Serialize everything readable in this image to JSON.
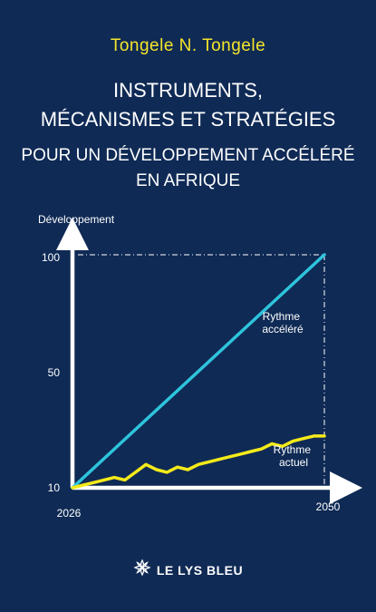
{
  "author": "Tongele N. Tongele",
  "title_lines": [
    "INSTRUMENTS,",
    "MÉCANISMES ET STRATÉGIES"
  ],
  "subtitle_lines": [
    "POUR UN DÉVELOPPEMENT ACCÉLÉRÉ",
    "EN AFRIQUE"
  ],
  "publisher": {
    "name": "LE LYS BLEU",
    "logo_icon": "lily-flower-icon"
  },
  "colors": {
    "background": "#0f2a55",
    "author": "#f4e52a",
    "accelerated_line": "#2ec4dc",
    "current_line": "#f4ea1a",
    "axes": "#ffffff"
  },
  "chart_data": {
    "type": "line",
    "ylabel": "Développement",
    "xlabel": "",
    "xlim": [
      2026,
      2050
    ],
    "x_ticks": [
      "2026",
      "2050"
    ],
    "y_ticks": [
      "10",
      "50",
      "100"
    ],
    "ylim": [
      10,
      100
    ],
    "series": [
      {
        "name_lines": [
          "Rythme",
          "accéléré"
        ],
        "color": "#2ec4dc",
        "x": [
          2026,
          2050
        ],
        "y": [
          10,
          100
        ]
      },
      {
        "name_lines": [
          "Rythme",
          "actuel"
        ],
        "color": "#f4ea1a",
        "x": [
          2026,
          2027,
          2028,
          2029,
          2030,
          2031,
          2032,
          2033,
          2034,
          2035,
          2036,
          2037,
          2038,
          2039,
          2040,
          2041,
          2042,
          2043,
          2044,
          2045,
          2046,
          2047,
          2048,
          2049,
          2050
        ],
        "y": [
          10,
          11,
          12,
          13,
          14,
          13,
          16,
          19,
          17,
          16,
          18,
          17,
          19,
          20,
          21,
          22,
          23,
          24,
          25,
          27,
          26,
          28,
          29,
          30,
          30
        ]
      }
    ],
    "reference_lines": "dash-dot at x=2050 and y=100",
    "grid": false,
    "legend": "inline labels"
  }
}
